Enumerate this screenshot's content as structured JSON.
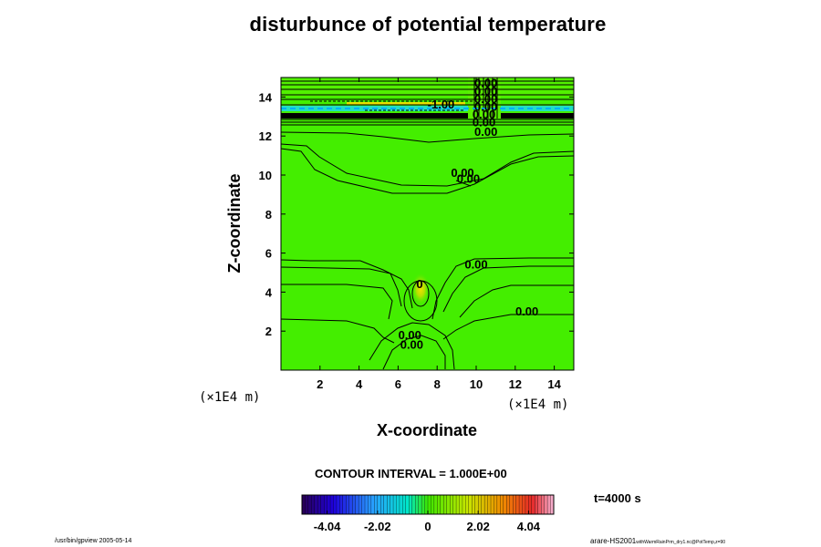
{
  "chart_data": {
    "type": "contour",
    "title": "disturbunce of potential temperature",
    "xlabel": "X-coordinate",
    "ylabel": "Z-coordinate",
    "x_unit": "(×1E4 m)",
    "y_unit": "(×1E4 m)",
    "xlim": [
      0,
      15
    ],
    "ylim": [
      0,
      15
    ],
    "x_ticks": [
      2,
      4,
      6,
      8,
      10,
      12,
      14
    ],
    "y_ticks": [
      2,
      4,
      6,
      8,
      10,
      12,
      14
    ],
    "contour_interval_text": "CONTOUR INTERVAL = 1.000E+00",
    "contour_labels": [
      {
        "text": "0.00",
        "x": 10.5,
        "y": 14.5
      },
      {
        "text": "0.00",
        "x": 10.5,
        "y": 14.1
      },
      {
        "text": "0.00",
        "x": 10.5,
        "y": 13.7
      },
      {
        "text": "0.00",
        "x": 10.5,
        "y": 13.3
      },
      {
        "text": "0.00",
        "x": 10.4,
        "y": 12.9
      },
      {
        "text": "0.00",
        "x": 10.4,
        "y": 12.5
      },
      {
        "text": "0.00",
        "x": 10.5,
        "y": 12.0
      },
      {
        "text": "-1.00",
        "x": 8.2,
        "y": 13.4
      },
      {
        "text": "0.00",
        "x": 9.3,
        "y": 9.9
      },
      {
        "text": "0.00",
        "x": 9.6,
        "y": 9.6
      },
      {
        "text": "0.00",
        "x": 10.0,
        "y": 5.2
      },
      {
        "text": "0.00",
        "x": 12.6,
        "y": 2.8
      },
      {
        "text": "0.00",
        "x": 6.6,
        "y": 1.6
      },
      {
        "text": "0.00",
        "x": 6.7,
        "y": 1.1
      },
      {
        "text": "0",
        "x": 7.1,
        "y": 4.2
      }
    ],
    "colorbar": {
      "tick_labels": [
        "-4.04",
        "-2.02",
        "0",
        "2.02",
        "4.04"
      ],
      "range": [
        -5.05,
        5.05
      ]
    },
    "time_text": "t=4000 s"
  },
  "footer": {
    "left": "/usr/bin/gpview 2005-05-14",
    "right_main": "arare-HS2001",
    "right_small": "withWarmRainPrm_dry1.nc@PotTemp,z=90"
  }
}
